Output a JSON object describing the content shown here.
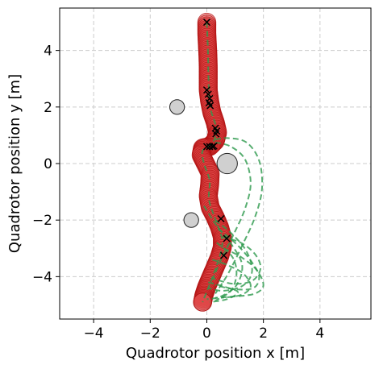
{
  "chart_data": {
    "type": "scatter",
    "title": "",
    "xlabel": "Quadrotor position x [m]",
    "ylabel": "Quadrotor position y [m]",
    "xlim": [
      -5.2,
      5.8
    ],
    "ylim": [
      -5.5,
      5.5
    ],
    "xticks": [
      -4,
      -2,
      0,
      2,
      4
    ],
    "yticks": [
      -4,
      -2,
      0,
      2,
      4
    ],
    "xtick_labels": [
      "−4",
      "−2",
      "0",
      "2",
      "4"
    ],
    "ytick_labels": [
      "−4",
      "−2",
      "0",
      "2",
      "4"
    ],
    "grid": true,
    "legend": "none",
    "colors": {
      "trajectory_fill": "#e04848",
      "trajectory_edge": "#b01010",
      "predicted": "#2e9a4e",
      "obstacle_fill": "#d0d0d0",
      "obstacle_edge": "#222222",
      "marker": "#000000",
      "grid": "#cccccc"
    },
    "obstacles": [
      {
        "x": -1.05,
        "y": 2.0,
        "r": 0.26
      },
      {
        "x": -0.55,
        "y": -2.0,
        "r": 0.26
      },
      {
        "x": 0.72,
        "y": 0.0,
        "r": 0.36
      }
    ],
    "trajectory": {
      "radius": 0.32,
      "points": [
        [
          0.0,
          5.0
        ],
        [
          0.0,
          4.6
        ],
        [
          0.02,
          4.2
        ],
        [
          0.04,
          3.8
        ],
        [
          0.05,
          3.4
        ],
        [
          0.05,
          3.0
        ],
        [
          0.05,
          2.6
        ],
        [
          0.1,
          2.2
        ],
        [
          0.18,
          1.8
        ],
        [
          0.3,
          1.45
        ],
        [
          0.38,
          1.1
        ],
        [
          0.3,
          0.8
        ],
        [
          0.1,
          0.6
        ],
        [
          -0.15,
          0.55
        ],
        [
          -0.2,
          0.3
        ],
        [
          -0.05,
          0.0
        ],
        [
          0.12,
          -0.35
        ],
        [
          0.1,
          -0.75
        ],
        [
          0.05,
          -1.15
        ],
        [
          0.12,
          -1.55
        ],
        [
          0.3,
          -1.9
        ],
        [
          0.45,
          -2.25
        ],
        [
          0.55,
          -2.6
        ],
        [
          0.55,
          -2.95
        ],
        [
          0.45,
          -3.3
        ],
        [
          0.3,
          -3.65
        ],
        [
          0.15,
          -4.0
        ],
        [
          0.0,
          -4.35
        ],
        [
          -0.1,
          -4.65
        ],
        [
          -0.15,
          -4.9
        ]
      ]
    },
    "markers": [
      [
        0.0,
        5.0
      ],
      [
        0.0,
        2.6
      ],
      [
        0.05,
        2.45
      ],
      [
        0.1,
        2.3
      ],
      [
        0.08,
        2.15
      ],
      [
        0.12,
        2.05
      ],
      [
        0.3,
        1.25
      ],
      [
        0.35,
        1.15
      ],
      [
        0.32,
        1.05
      ],
      [
        0.0,
        0.6
      ],
      [
        0.1,
        0.6
      ],
      [
        0.2,
        0.6
      ],
      [
        0.25,
        0.62
      ],
      [
        0.5,
        -1.95
      ],
      [
        0.7,
        -2.65
      ],
      [
        0.6,
        -3.25
      ]
    ],
    "predicted_paths": [
      [
        [
          0.0,
          5.0
        ],
        [
          0.04,
          4.0
        ],
        [
          0.06,
          3.0
        ],
        [
          0.12,
          2.0
        ],
        [
          0.34,
          1.2
        ],
        [
          0.18,
          0.7
        ],
        [
          -0.15,
          0.45
        ],
        [
          -0.1,
          0.0
        ],
        [
          0.1,
          -0.6
        ],
        [
          0.08,
          -1.3
        ],
        [
          0.35,
          -2.1
        ],
        [
          0.55,
          -2.8
        ],
        [
          0.35,
          -3.6
        ],
        [
          0.05,
          -4.4
        ],
        [
          -0.15,
          -4.9
        ]
      ],
      [
        [
          0.3,
          0.85
        ],
        [
          0.75,
          0.9
        ],
        [
          1.4,
          0.75
        ],
        [
          1.85,
          0.1
        ],
        [
          1.95,
          -0.9
        ],
        [
          1.7,
          -1.9
        ],
        [
          1.25,
          -2.9
        ],
        [
          0.75,
          -3.9
        ],
        [
          0.3,
          -4.6
        ]
      ],
      [
        [
          0.3,
          0.75
        ],
        [
          0.85,
          0.6
        ],
        [
          1.35,
          0.15
        ],
        [
          1.55,
          -0.7
        ],
        [
          1.35,
          -1.6
        ],
        [
          0.95,
          -2.5
        ],
        [
          0.55,
          -3.3
        ],
        [
          0.2,
          -4.1
        ]
      ],
      [
        [
          0.55,
          -2.6
        ],
        [
          1.2,
          -2.8
        ],
        [
          1.7,
          -3.2
        ],
        [
          1.9,
          -3.7
        ],
        [
          1.6,
          -4.15
        ],
        [
          0.9,
          -4.25
        ],
        [
          0.2,
          -4.05
        ]
      ],
      [
        [
          0.4,
          -2.3
        ],
        [
          1.1,
          -2.9
        ],
        [
          1.6,
          -3.5
        ],
        [
          1.85,
          -4.0
        ],
        [
          1.65,
          -4.4
        ],
        [
          1.0,
          -4.45
        ],
        [
          0.3,
          -4.3
        ]
      ],
      [
        [
          0.3,
          -2.0
        ],
        [
          0.9,
          -2.5
        ],
        [
          1.4,
          -3.1
        ],
        [
          1.6,
          -3.8
        ],
        [
          1.3,
          -4.3
        ],
        [
          0.6,
          -4.5
        ],
        [
          0.05,
          -4.4
        ]
      ],
      [
        [
          0.6,
          -3.0
        ],
        [
          1.2,
          -3.3
        ],
        [
          1.75,
          -3.75
        ],
        [
          2.0,
          -4.3
        ],
        [
          1.7,
          -4.6
        ],
        [
          1.0,
          -4.7
        ],
        [
          0.3,
          -4.75
        ]
      ],
      [
        [
          -0.1,
          -1.5
        ],
        [
          0.35,
          -2.2
        ],
        [
          0.9,
          -2.9
        ],
        [
          1.25,
          -3.6
        ],
        [
          1.05,
          -4.3
        ],
        [
          0.5,
          -4.7
        ],
        [
          0.0,
          -4.8
        ]
      ],
      [
        [
          0.2,
          -3.4
        ],
        [
          0.75,
          -3.6
        ],
        [
          1.3,
          -3.9
        ],
        [
          1.55,
          -4.35
        ],
        [
          1.2,
          -4.65
        ],
        [
          0.5,
          -4.75
        ]
      ],
      [
        [
          0.35,
          -2.8
        ],
        [
          0.9,
          -3.3
        ],
        [
          1.05,
          -3.9
        ],
        [
          0.85,
          -4.5
        ],
        [
          0.3,
          -4.85
        ]
      ],
      [
        [
          0.05,
          -4.2
        ],
        [
          0.6,
          -4.35
        ],
        [
          1.1,
          -4.55
        ],
        [
          0.7,
          -4.8
        ],
        [
          0.1,
          -4.9
        ]
      ]
    ]
  }
}
